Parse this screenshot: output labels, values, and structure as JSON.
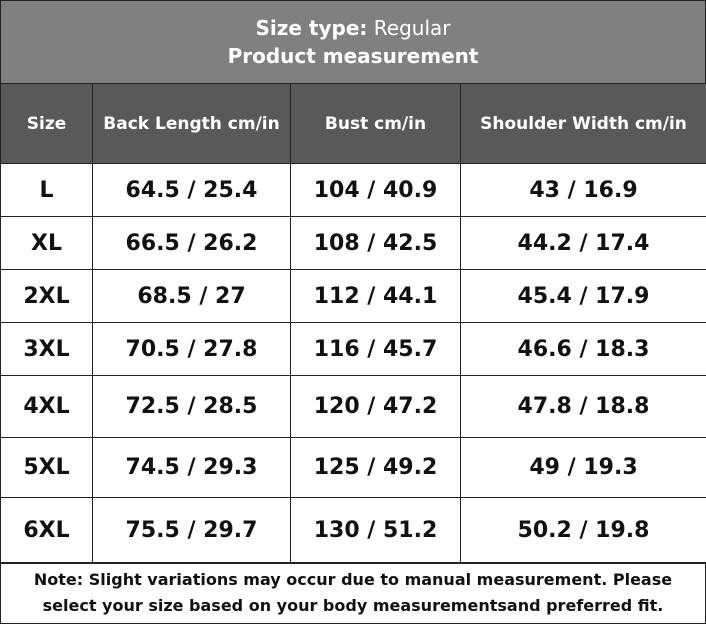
{
  "header": {
    "size_type_label": "Size type:",
    "size_type_value": "Regular",
    "title": "Product measurement"
  },
  "table": {
    "columns": [
      "Size",
      "Back Length cm/in",
      "Bust cm/in",
      "Shoulder Width cm/in"
    ],
    "rows": [
      [
        "L",
        "64.5 / 25.4",
        "104 / 40.9",
        "43 / 16.9"
      ],
      [
        "XL",
        "66.5 / 26.2",
        "108 / 42.5",
        "44.2 / 17.4"
      ],
      [
        "2XL",
        "68.5 / 27",
        "112 / 44.1",
        "45.4 / 17.9"
      ],
      [
        "3XL",
        "70.5 / 27.8",
        "116 / 45.7",
        "46.6 / 18.3"
      ],
      [
        "4XL",
        "72.5 / 28.5",
        "120 / 47.2",
        "47.8 / 18.8"
      ],
      [
        "5XL",
        "74.5 / 29.3",
        "125 / 49.2",
        "49 / 19.3"
      ],
      [
        "6XL",
        "75.5 / 29.7",
        "130 / 51.2",
        "50.2 / 19.8"
      ]
    ]
  },
  "note": "Note: Slight variations may occur due to manual measurement. Please select your size based on your body measurementsand preferred fit."
}
